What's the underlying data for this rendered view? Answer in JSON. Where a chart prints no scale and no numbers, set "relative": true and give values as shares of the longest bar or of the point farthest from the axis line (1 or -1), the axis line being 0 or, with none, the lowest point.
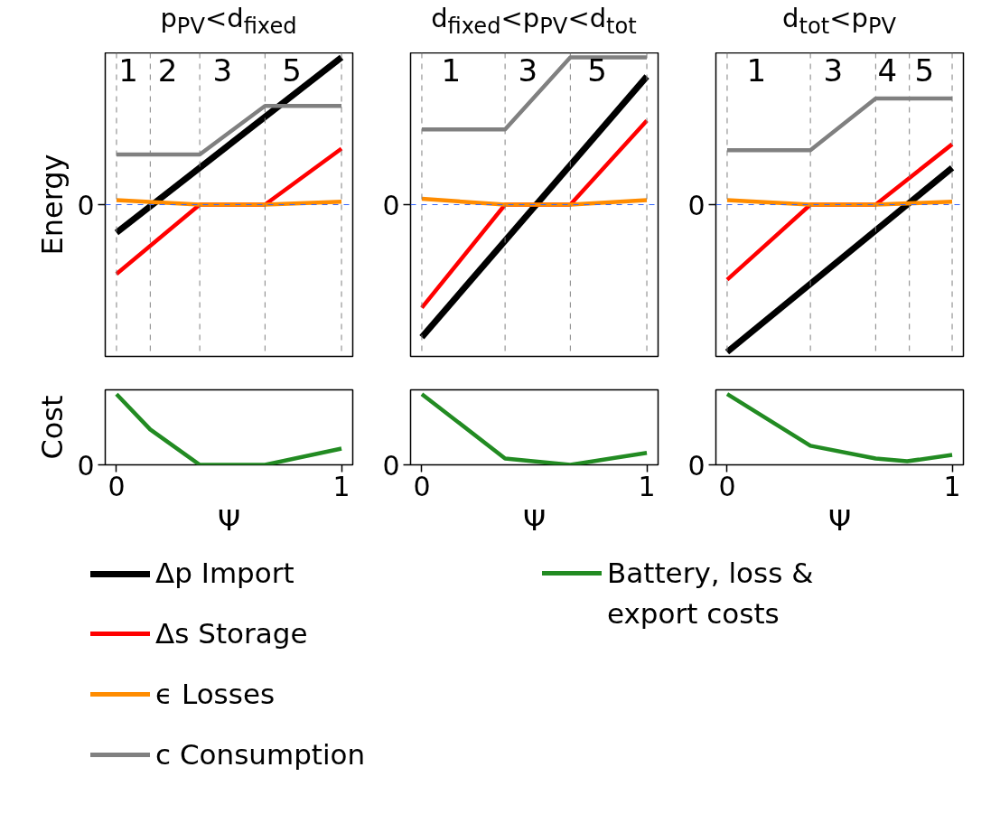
{
  "chart_data": [
    {
      "type": "line",
      "title": "p$_{PV}$<d$_{fixed}$",
      "ylabel": "Energy",
      "relative": true,
      "xlim": [
        -0.05,
        1.05
      ],
      "tick_labels": false,
      "legend": "bottom",
      "series": [
        {
          "name": "Δp Import",
          "color": "#000000",
          "x": [
            0,
            1
          ],
          "values": [
            -0.19,
            1.0
          ]
        },
        {
          "name": "Δs Storage",
          "color": "#ff0000",
          "x": [
            0,
            0.37,
            0.66,
            1
          ],
          "values": [
            -0.47,
            0,
            0,
            0.38
          ]
        },
        {
          "name": "ϵ Losses",
          "color": "#ff8c00",
          "x": [
            0,
            0.37,
            0.66,
            1
          ],
          "values": [
            0.03,
            0,
            0,
            0.02
          ]
        },
        {
          "name": "c Consumption",
          "color": "#808080",
          "x": [
            0,
            0.37,
            0.66,
            1
          ],
          "values": [
            0.34,
            0.34,
            0.67,
            0.67
          ]
        }
      ],
      "ref_lines": [
        {
          "axis": "y",
          "value": 0,
          "label": "0",
          "color": "#3366ff",
          "line_style": "dashed"
        },
        {
          "axis": "x",
          "value": 0,
          "color": "#808080",
          "line_style": "dashed"
        },
        {
          "axis": "x",
          "value": 0.15,
          "color": "#808080",
          "line_style": "dashed"
        },
        {
          "axis": "x",
          "value": 0.37,
          "color": "#808080",
          "line_style": "dashed"
        },
        {
          "axis": "x",
          "value": 0.66,
          "color": "#808080",
          "line_style": "dashed"
        },
        {
          "axis": "x",
          "value": 1,
          "color": "#808080",
          "line_style": "dashed"
        }
      ],
      "annotations": [
        "1",
        "2",
        "3",
        "5"
      ]
    },
    {
      "type": "line",
      "title": "d$_{fixed}$<p$_{PV}$<d$_{tot}$",
      "relative": true,
      "xlim": [
        -0.05,
        1.05
      ],
      "tick_labels": false,
      "series": [
        {
          "color": "#000000",
          "x": [
            0,
            1
          ],
          "values": [
            -0.9,
            0.87
          ]
        },
        {
          "color": "#ff0000",
          "x": [
            0,
            0.37,
            0.66,
            1
          ],
          "values": [
            -0.7,
            0,
            0,
            0.57
          ]
        },
        {
          "color": "#ff8c00",
          "x": [
            0,
            0.37,
            0.66,
            1
          ],
          "values": [
            0.04,
            0,
            0,
            0.03
          ]
        },
        {
          "color": "#808080",
          "x": [
            0,
            0.37,
            0.66,
            1
          ],
          "values": [
            0.51,
            0.51,
            1.0,
            1.0
          ]
        }
      ],
      "ref_lines": [
        {
          "axis": "y",
          "value": 0,
          "label": "0",
          "color": "#3366ff",
          "line_style": "dashed"
        },
        {
          "axis": "x",
          "value": 0,
          "color": "#808080",
          "line_style": "dashed"
        },
        {
          "axis": "x",
          "value": 0.37,
          "color": "#808080",
          "line_style": "dashed"
        },
        {
          "axis": "x",
          "value": 0.66,
          "color": "#808080",
          "line_style": "dashed"
        },
        {
          "axis": "x",
          "value": 1,
          "color": "#808080",
          "line_style": "dashed"
        }
      ],
      "annotations": [
        "1",
        "3",
        "5"
      ]
    },
    {
      "type": "line",
      "title": "d$_{tot}$<p$_{PV}$",
      "relative": true,
      "xlim": [
        -0.05,
        1.05
      ],
      "tick_labels": false,
      "series": [
        {
          "color": "#000000",
          "x": [
            0,
            1
          ],
          "values": [
            -1.0,
            0.25
          ]
        },
        {
          "color": "#ff0000",
          "x": [
            0,
            0.37,
            0.66,
            1
          ],
          "values": [
            -0.51,
            0,
            0,
            0.41
          ]
        },
        {
          "color": "#ff8c00",
          "x": [
            0,
            0.37,
            0.66,
            1
          ],
          "values": [
            0.03,
            0,
            0,
            0.02
          ]
        },
        {
          "color": "#808080",
          "x": [
            0,
            0.37,
            0.66,
            1
          ],
          "values": [
            0.37,
            0.37,
            0.72,
            0.72
          ]
        }
      ],
      "ref_lines": [
        {
          "axis": "y",
          "value": 0,
          "label": "0",
          "color": "#3366ff",
          "line_style": "dashed"
        },
        {
          "axis": "x",
          "value": 0,
          "color": "#808080",
          "line_style": "dashed"
        },
        {
          "axis": "x",
          "value": 0.37,
          "color": "#808080",
          "line_style": "dashed"
        },
        {
          "axis": "x",
          "value": 0.66,
          "color": "#808080",
          "line_style": "dashed"
        },
        {
          "axis": "x",
          "value": 0.81,
          "color": "#808080",
          "line_style": "dashed"
        },
        {
          "axis": "x",
          "value": 1,
          "color": "#808080",
          "line_style": "dashed"
        }
      ],
      "annotations": [
        "1",
        "3",
        "4",
        "5"
      ]
    },
    {
      "type": "line",
      "ylabel": "Cost",
      "xlabel": "Ψ",
      "relative": true,
      "xlim": [
        -0.05,
        1.05
      ],
      "xticks": [
        0,
        1
      ],
      "tick_labels": "x",
      "legend": "bottom",
      "series": [
        {
          "name": "Battery, loss & export costs",
          "color": "#228b22",
          "x": [
            0,
            0.15,
            0.37,
            0.66,
            1
          ],
          "values": [
            1,
            0.5,
            0,
            0,
            0.23
          ]
        }
      ],
      "annotations": [
        "0"
      ]
    },
    {
      "type": "line",
      "xlabel": "Ψ",
      "relative": true,
      "xlim": [
        -0.05,
        1.05
      ],
      "xticks": [
        0,
        1
      ],
      "tick_labels": "x",
      "series": [
        {
          "color": "#228b22",
          "x": [
            0,
            0.37,
            0.66,
            1
          ],
          "values": [
            1,
            0.09,
            0,
            0.17
          ]
        }
      ],
      "annotations": [
        "0"
      ]
    },
    {
      "type": "line",
      "xlabel": "Ψ",
      "relative": true,
      "xlim": [
        -0.05,
        1.05
      ],
      "xticks": [
        0,
        1
      ],
      "tick_labels": "x",
      "series": [
        {
          "color": "#228b22",
          "x": [
            0,
            0.37,
            0.66,
            0.8,
            1
          ],
          "values": [
            1,
            0.27,
            0.09,
            0.05,
            0.14
          ]
        }
      ],
      "annotations": [
        "0"
      ]
    }
  ]
}
